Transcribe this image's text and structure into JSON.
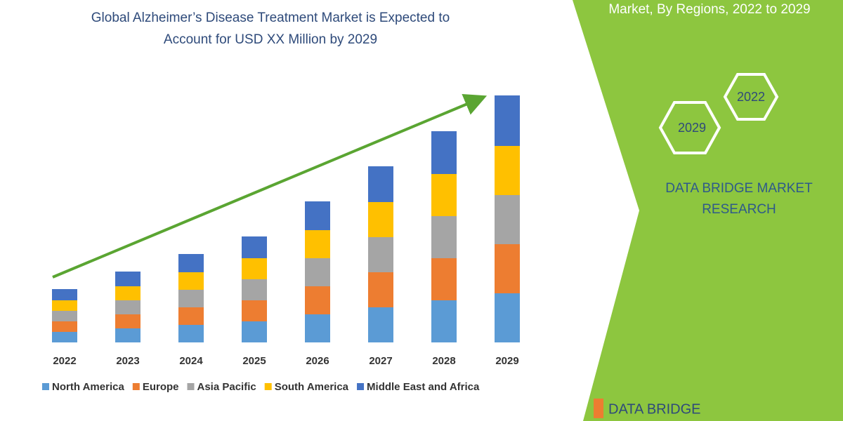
{
  "header_text": "Market, By Regions, 2022 to 2029",
  "badges": [
    "2022",
    "2029"
  ],
  "brand": [
    "DATA BRIDGE MARKET",
    "RESEARCH"
  ],
  "logo": "DATA BRIDGE",
  "chart_data": {
    "type": "bar",
    "stacked": true,
    "title": [
      "Global Alzheimer’s Disease Treatment Market is Expected to",
      "Account for USD XX Million by 2029"
    ],
    "categories": [
      "2022",
      "2023",
      "2024",
      "2025",
      "2026",
      "2027",
      "2028",
      "2029"
    ],
    "series": [
      {
        "name": "North America",
        "color": "#5b9bd5",
        "values": [
          15,
          20,
          25,
          30,
          40,
          50,
          60,
          70
        ]
      },
      {
        "name": "Europe",
        "color": "#ed7d31",
        "values": [
          15,
          20,
          25,
          30,
          40,
          50,
          60,
          70
        ]
      },
      {
        "name": "Asia Pacific",
        "color": "#a5a5a5",
        "values": [
          15,
          20,
          25,
          30,
          40,
          50,
          60,
          70
        ]
      },
      {
        "name": "South America",
        "color": "#ffc000",
        "values": [
          15,
          20,
          25,
          30,
          40,
          50,
          60,
          70
        ]
      },
      {
        "name": "Middle East and Africa",
        "color": "#4472c4",
        "values": [
          16,
          21,
          26,
          31,
          41,
          51,
          61,
          72
        ]
      }
    ],
    "ylim": [
      0,
      360
    ]
  }
}
